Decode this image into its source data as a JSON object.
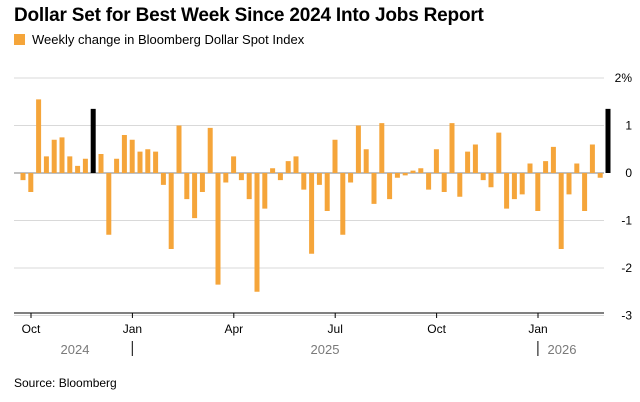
{
  "title": "Dollar Set for Best Week Since 2024 Into Jobs Report",
  "source": "Source: Bloomberg",
  "colors": {
    "bar": "#f5a53a",
    "highlight": "#000000",
    "grid": "#d9d9d9",
    "zero": "#7f7f7f"
  },
  "chart_data": {
    "type": "bar",
    "title": "Dollar Set for Best Week Since 2024 Into Jobs Report",
    "series": [
      {
        "name": "Weekly change in Bloomberg Dollar Spot Index",
        "values": [
          -0.15,
          -0.4,
          1.55,
          0.35,
          0.7,
          0.75,
          0.35,
          0.15,
          0.3,
          1.35,
          0.4,
          -1.3,
          0.3,
          0.8,
          0.7,
          0.45,
          0.5,
          0.45,
          -0.25,
          -1.6,
          1.0,
          -0.55,
          -0.95,
          -0.4,
          0.95,
          -2.35,
          -0.2,
          0.35,
          -0.15,
          -0.55,
          -2.5,
          -0.75,
          0.1,
          -0.15,
          0.25,
          0.35,
          -0.35,
          -1.7,
          -0.25,
          -0.8,
          0.7,
          -1.3,
          -0.2,
          1.0,
          0.5,
          -0.65,
          1.05,
          -0.55,
          -0.1,
          -0.05,
          0.05,
          0.1,
          -0.35,
          0.5,
          -0.4,
          1.05,
          -0.5,
          0.45,
          0.6,
          -0.15,
          -0.3,
          0.85,
          -0.75,
          -0.55,
          -0.45,
          0.2,
          -0.8,
          0.25,
          0.55,
          -1.6,
          -0.45,
          0.2,
          -0.8,
          0.6,
          -0.1,
          1.35
        ]
      }
    ],
    "highlight_indices": [
      9,
      75
    ],
    "y_ticks": [
      2,
      1,
      0,
      -1,
      -2,
      -3
    ],
    "y_tick_labels": [
      "2%",
      "1",
      "0",
      "-1",
      "-2",
      "-3"
    ],
    "ylim": [
      -3.3,
      2.2
    ],
    "month_labels": [
      "Oct",
      "Jan",
      "Apr",
      "Jul",
      "Oct",
      "Jan"
    ],
    "month_tick_weeks": [
      0,
      13,
      26,
      39,
      52,
      65
    ],
    "year_labels": [
      "2024",
      "2025",
      "2026"
    ],
    "year_divider_weeks": [
      13.5,
      65.5
    ],
    "xlabel": "",
    "ylabel": "",
    "grid": true,
    "legend": "top-left"
  }
}
